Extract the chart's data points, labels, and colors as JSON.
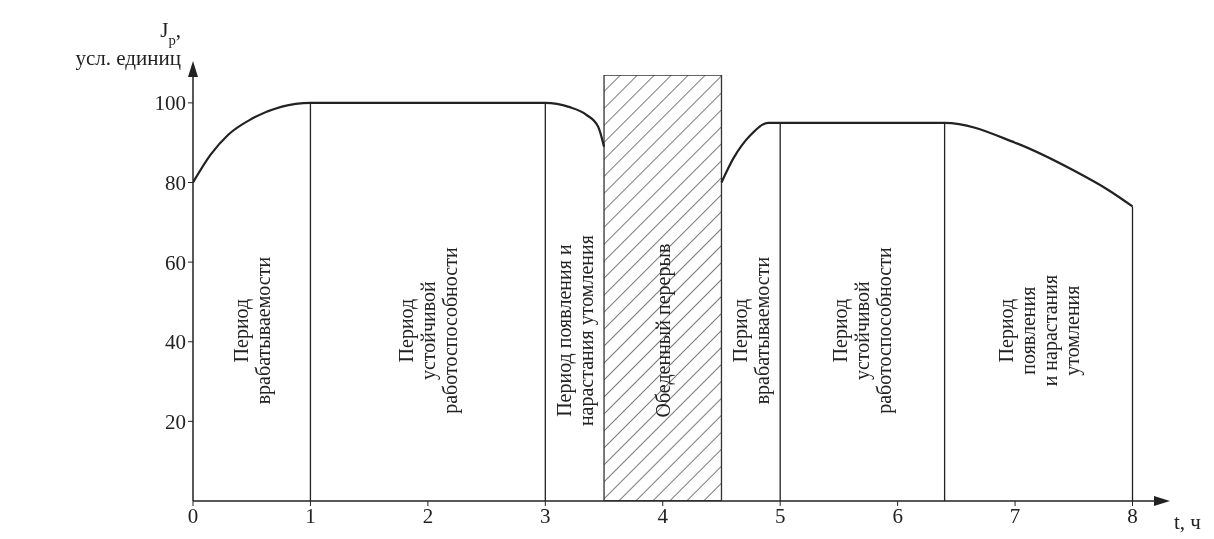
{
  "chart_data": {
    "type": "line",
    "xlabel": "t, ч",
    "ylabel": "J$_{р}$,\nусл. единиц",
    "x": [
      0,
      0.15,
      0.3,
      0.5,
      0.75,
      1,
      2,
      3,
      3.2,
      3.35,
      3.45,
      3.5,
      4,
      4.5,
      4.6,
      4.75,
      4.9,
      5,
      6,
      6.4,
      7,
      7.5,
      7.8,
      8
    ],
    "series": [
      {
        "color": "#222222",
        "values": [
          80,
          87,
          92,
          96,
          99,
          100,
          100,
          100,
          99,
          97,
          94,
          89,
          null,
          80,
          86,
          92,
          95,
          95,
          95,
          95,
          90,
          83,
          78,
          74
        ]
      }
    ],
    "xlim": [
      0,
      8.2
    ],
    "xticks": [
      0,
      1,
      2,
      3,
      4,
      5,
      6,
      7,
      8
    ],
    "ylim": [
      0,
      107
    ],
    "yticks": [
      20,
      40,
      60,
      80,
      100
    ],
    "grid": false,
    "marker": "none",
    "line_style": "solid",
    "ref_lines": [
      {
        "axis": "x",
        "value": 1
      },
      {
        "axis": "x",
        "value": 3
      },
      {
        "axis": "x",
        "value": 5
      },
      {
        "axis": "x",
        "value": 6.4
      },
      {
        "axis": "x",
        "value": 8
      }
    ],
    "bands": [
      {
        "axis": "x",
        "from": 3.5,
        "to": 4.5,
        "label": "Обеденный перерыв",
        "color": "#333333"
      }
    ],
    "annotations": [
      "Период\nврабатываемости",
      "Период\nустойчивой\nработоспособности",
      "Период появления и\nнарастания утомления",
      "Период\nврабатываемости",
      "Период\nустойчивой\nработоспособности",
      "Период\nпоявления\nи нарастания\nутомления"
    ]
  }
}
